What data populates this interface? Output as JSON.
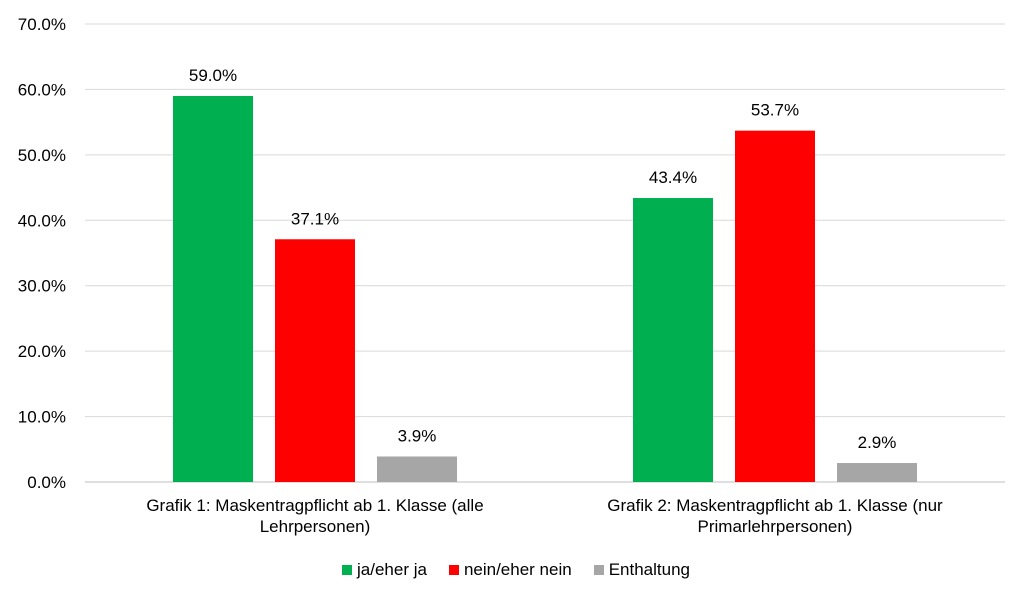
{
  "chart_data": {
    "type": "bar",
    "categories": [
      [
        "Grafik 1: Maskentragpflicht ab 1. Klasse (alle",
        "Lehrpersonen)"
      ],
      [
        "Grafik 2: Maskentragpflicht ab 1. Klasse (nur",
        "Primarlehrpersonen)"
      ]
    ],
    "series": [
      {
        "name": "ja/eher ja",
        "color": "#00B050",
        "values": [
          59.0,
          43.4
        ],
        "labels": [
          "59.0%",
          "43.4%"
        ]
      },
      {
        "name": "nein/eher nein",
        "color": "#FF0000",
        "values": [
          37.1,
          53.7
        ],
        "labels": [
          "37.1%",
          "53.7%"
        ]
      },
      {
        "name": "Enthaltung",
        "color": "#A6A6A6",
        "values": [
          3.9,
          2.9
        ],
        "labels": [
          "3.9%",
          "2.9%"
        ]
      }
    ],
    "ylim": [
      0,
      70
    ],
    "yticks": [
      "0.0%",
      "10.0%",
      "20.0%",
      "30.0%",
      "40.0%",
      "50.0%",
      "60.0%",
      "70.0%"
    ],
    "grid": true,
    "legend_position": "bottom"
  }
}
